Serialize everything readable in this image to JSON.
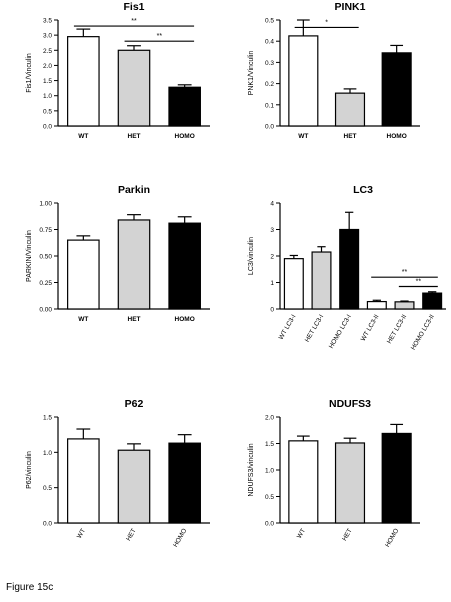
{
  "caption": "Figure 15c",
  "colors": {
    "wt": "#ffffff",
    "het": "#d3d3d3",
    "homo": "#000000",
    "axis": "#000000"
  },
  "chart_data": [
    {
      "type": "bar",
      "title": "Fis1",
      "ylabel": "Fis1/Vinculin",
      "ylim": [
        0,
        3.5
      ],
      "yticks": [
        "0.0",
        "0.5",
        "1.0",
        "1.5",
        "2.0",
        "2.5",
        "3.0",
        "3.5"
      ],
      "categories": [
        "WT",
        "HET",
        "HOMO"
      ],
      "values": [
        2.95,
        2.5,
        1.28
      ],
      "errors": [
        0.25,
        0.15,
        0.08
      ],
      "fills": [
        "#ffffff",
        "#d3d3d3",
        "#000000"
      ],
      "significance": [
        {
          "from": 0,
          "to": 2,
          "label": "**",
          "y": 3.3
        },
        {
          "from": 1,
          "to": 2,
          "label": "**",
          "y": 2.8
        }
      ]
    },
    {
      "type": "bar",
      "title": "PINK1",
      "ylabel": "PNK1/Vinculin",
      "ylim": [
        0,
        0.5
      ],
      "yticks": [
        "0.0",
        "0.1",
        "0.2",
        "0.3",
        "0.4",
        "0.5"
      ],
      "categories": [
        "WT",
        "HET",
        "HOMO"
      ],
      "values": [
        0.425,
        0.155,
        0.345
      ],
      "errors": [
        0.075,
        0.02,
        0.035
      ],
      "fills": [
        "#ffffff",
        "#d3d3d3",
        "#000000"
      ],
      "significance": [
        {
          "from": 0,
          "to": 1,
          "label": "*",
          "y": 0.465
        }
      ]
    },
    {
      "type": "bar",
      "title": "Parkin",
      "ylabel": "PARKIN/Vinculin",
      "ylim": [
        0,
        1.0
      ],
      "yticks": [
        "0.00",
        "0.25",
        "0.50",
        "0.75",
        "1.00"
      ],
      "categories": [
        "WT",
        "HET",
        "HOMO"
      ],
      "values": [
        0.65,
        0.84,
        0.81
      ],
      "errors": [
        0.04,
        0.05,
        0.06
      ],
      "fills": [
        "#ffffff",
        "#d3d3d3",
        "#000000"
      ],
      "significance": []
    },
    {
      "type": "bar",
      "title": "LC3",
      "ylabel": "LC3/vinculin",
      "ylim": [
        0,
        4
      ],
      "yticks": [
        "0",
        "1",
        "2",
        "3",
        "4"
      ],
      "categories": [
        "WT LC3-I",
        "HET LC3-I",
        "HOMO LC3-I",
        "WT LC3-II",
        "HET LC3-II",
        "HOMO LC3-II"
      ],
      "values": [
        1.9,
        2.15,
        3.0,
        0.28,
        0.27,
        0.6
      ],
      "errors": [
        0.12,
        0.2,
        0.65,
        0.05,
        0.03,
        0.05
      ],
      "fills": [
        "#ffffff",
        "#d3d3d3",
        "#000000",
        "#ffffff",
        "#d3d3d3",
        "#000000"
      ],
      "significance": [
        {
          "from": 3,
          "to": 5,
          "label": "**",
          "y": 1.2
        },
        {
          "from": 4,
          "to": 5,
          "label": "**",
          "y": 0.85
        }
      ]
    },
    {
      "type": "bar",
      "title": "P62",
      "ylabel": "P62/vinculin",
      "ylim": [
        0,
        1.5
      ],
      "yticks": [
        "0.0",
        "0.5",
        "1.0",
        "1.5"
      ],
      "categories": [
        "WT",
        "HET",
        "HOMO"
      ],
      "values": [
        1.19,
        1.03,
        1.13
      ],
      "errors": [
        0.14,
        0.09,
        0.12
      ],
      "fills": [
        "#ffffff",
        "#d3d3d3",
        "#000000"
      ],
      "significance": []
    },
    {
      "type": "bar",
      "title": "NDUFS3",
      "ylabel": "NDUFS3/vinculin",
      "ylim": [
        0,
        2.0
      ],
      "yticks": [
        "0.0",
        "0.5",
        "1.0",
        "1.5",
        "2.0"
      ],
      "categories": [
        "WT",
        "HET",
        "HOMO"
      ],
      "values": [
        1.55,
        1.51,
        1.69
      ],
      "errors": [
        0.09,
        0.09,
        0.17
      ],
      "fills": [
        "#ffffff",
        "#d3d3d3",
        "#000000"
      ],
      "significance": []
    }
  ]
}
